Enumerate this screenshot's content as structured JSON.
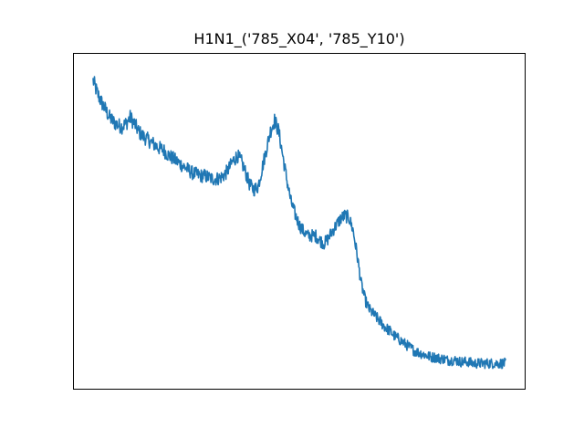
{
  "chart_data": {
    "type": "line",
    "title": "H1N1_('785_X04', '785_Y10')",
    "xlabel": "",
    "ylabel": "",
    "x_ticks_visible": false,
    "y_ticks_visible": false,
    "grid": false,
    "legend": "none",
    "xlim": [
      0,
      100
    ],
    "ylim": [
      0,
      100
    ],
    "series": [
      {
        "color": "#1f77b4",
        "noise": 2.2,
        "x": [
          0,
          1,
          2,
          3,
          4,
          5,
          6,
          7,
          8,
          9,
          10,
          11,
          12,
          13,
          14,
          15,
          16,
          17,
          18,
          19,
          20,
          21,
          22,
          23,
          24,
          25,
          26,
          27,
          28,
          29,
          30,
          31,
          32,
          33,
          34,
          35,
          36,
          37,
          38,
          39,
          40,
          41,
          42,
          43,
          44,
          45,
          46,
          47,
          48,
          49,
          50,
          51,
          52,
          53,
          54,
          55,
          56,
          57,
          58,
          59,
          60,
          61,
          62,
          63,
          64,
          65,
          66,
          67,
          68,
          69,
          70,
          71,
          72,
          73,
          74,
          75,
          76,
          77,
          78,
          79,
          80,
          81,
          82,
          83,
          84,
          85,
          86,
          87,
          88,
          89,
          90,
          91,
          92,
          93,
          94,
          95,
          96,
          97,
          98,
          99,
          100
        ],
        "values": [
          95.5,
          91.5,
          88.5,
          86,
          83.5,
          82,
          81,
          80.5,
          81.5,
          83.5,
          81.5,
          79,
          77.5,
          76.5,
          75.5,
          74.5,
          73.5,
          73,
          71.5,
          70.5,
          69.5,
          68.5,
          67.5,
          66.5,
          65.5,
          65,
          64.5,
          64.5,
          64,
          63.5,
          63.5,
          64,
          65,
          67,
          69.5,
          71,
          69,
          65.5,
          61.5,
          60,
          61,
          67,
          73,
          79,
          82.5,
          79,
          71,
          63,
          56,
          52,
          48.5,
          46.5,
          45,
          45,
          45,
          43.5,
          42.5,
          44,
          46.5,
          48.5,
          50.5,
          51.5,
          51,
          47,
          39,
          29.5,
          24,
          21,
          19.5,
          18,
          16.5,
          15,
          14,
          12.5,
          11.5,
          10.5,
          9.5,
          8.5,
          7.5,
          7,
          6.5,
          6,
          5.5,
          5.5,
          5,
          5,
          4.5,
          4.5,
          4.5,
          4,
          4,
          4,
          3.5,
          3.5,
          3.5,
          3.5,
          3.5,
          3.5,
          3.5,
          3.5,
          3.5
        ]
      }
    ]
  }
}
